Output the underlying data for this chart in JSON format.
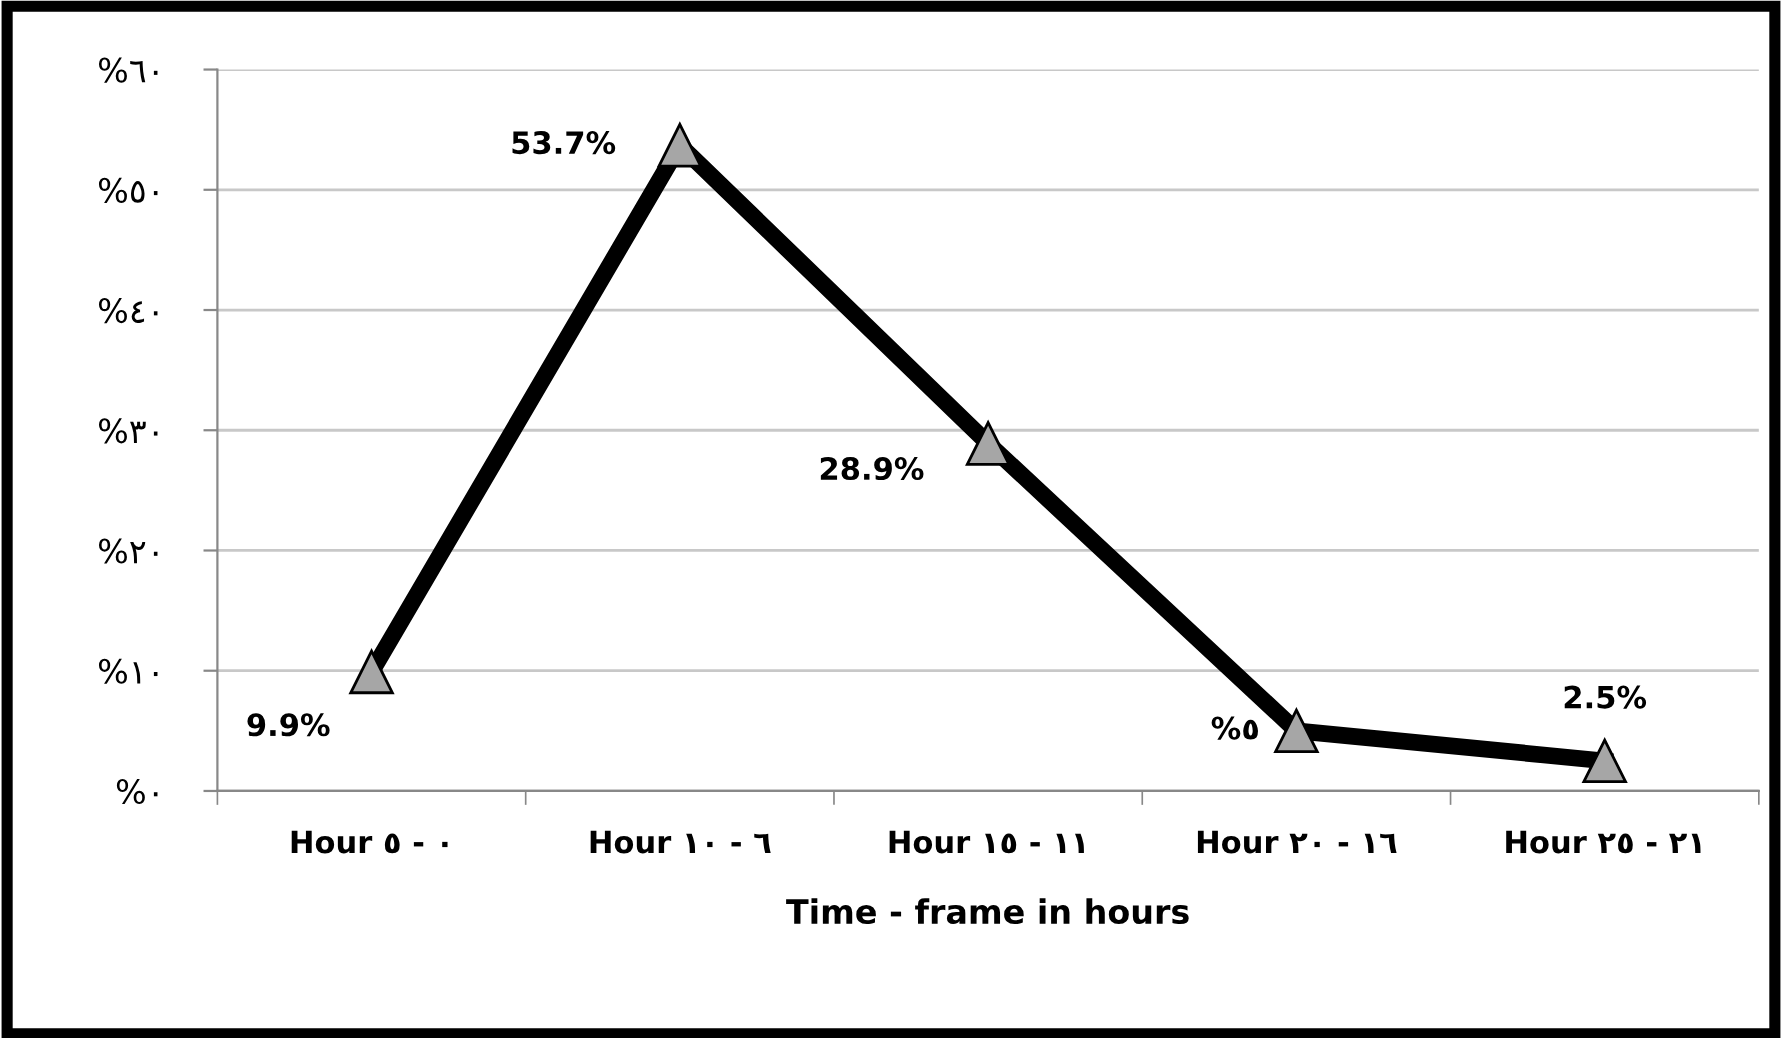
{
  "chart_data": {
    "type": "line",
    "xlabel": "Time - frame in hours",
    "categories": [
      "Hour ٥ - ٠",
      "Hour ١٠ - ٦",
      "Hour ١٥ - ١١",
      "Hour ٢٠ - ١٦",
      "Hour ٢٥ - ٢١"
    ],
    "series": [
      {
        "color": "#000000",
        "values": [
          9.9,
          53.7,
          28.9,
          5,
          2.5
        ],
        "value_labels": [
          "9.9%",
          "53.7%",
          "28.9%",
          "%٥",
          "2.5%"
        ]
      }
    ],
    "ylim": [
      0,
      60
    ],
    "yticks": [
      {
        "value": 0,
        "label": "%٠"
      },
      {
        "value": 10,
        "label": "%١٠"
      },
      {
        "value": 20,
        "label": "%٢٠"
      },
      {
        "value": 30,
        "label": "%٣٠"
      },
      {
        "value": 40,
        "label": "%٤٠"
      },
      {
        "value": 50,
        "label": "%٥٠"
      },
      {
        "value": 60,
        "label": "%٦٠"
      }
    ],
    "grid": "y",
    "marker": "triangle",
    "line_style": "solid",
    "legend": false
  }
}
